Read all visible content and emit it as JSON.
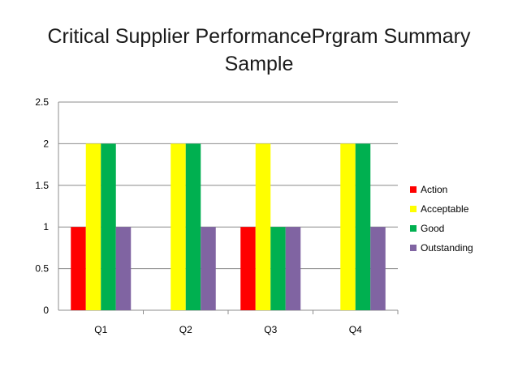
{
  "title_line1": "Critical Supplier PerformancePrgram Summary",
  "title_line2": "Sample",
  "chart_data": {
    "type": "bar",
    "categories": [
      "Q1",
      "Q2",
      "Q3",
      "Q4"
    ],
    "series": [
      {
        "name": "Action",
        "color": "#ff0000",
        "values": [
          1,
          0,
          1,
          0
        ]
      },
      {
        "name": "Acceptable",
        "color": "#ffff00",
        "values": [
          2,
          2,
          2,
          2
        ]
      },
      {
        "name": "Good",
        "color": "#00b050",
        "values": [
          2,
          2,
          1,
          2
        ]
      },
      {
        "name": "Outstanding",
        "color": "#8064a2",
        "values": [
          1,
          1,
          1,
          1
        ]
      }
    ],
    "ylim": [
      0,
      2.5
    ],
    "yticks": [
      "0",
      "0.5",
      "1",
      "1.5",
      "2",
      "2.5"
    ],
    "grid": true,
    "legend_position": "right"
  }
}
